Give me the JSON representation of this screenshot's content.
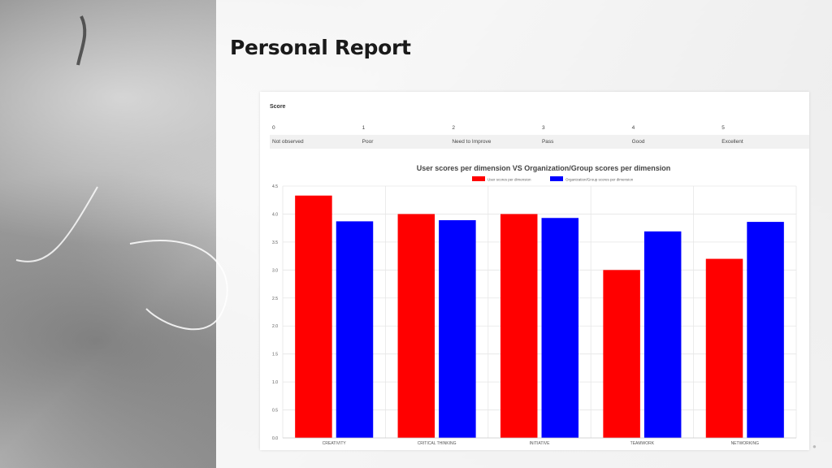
{
  "header": {
    "title": "Personal Report"
  },
  "score_scale": {
    "label": "Score",
    "levels": [
      {
        "value": "0",
        "label": "Not observed"
      },
      {
        "value": "1",
        "label": "Poor"
      },
      {
        "value": "2",
        "label": "Need to Improve"
      },
      {
        "value": "3",
        "label": "Pass"
      },
      {
        "value": "4",
        "label": "Good"
      },
      {
        "value": "5",
        "label": "Excellent"
      }
    ]
  },
  "chart_data": {
    "type": "bar",
    "title": "User scores per dimension VS Organization/Group scores per dimension",
    "categories": [
      "CREATIVITY",
      "CRITICAL THINKING",
      "INITIATIVE",
      "TEAMWORK",
      "NETWORKING"
    ],
    "series": [
      {
        "name": "User scores per dimension",
        "color": "#ff0000",
        "values": [
          4.33,
          4.0,
          4.0,
          3.0,
          3.2
        ]
      },
      {
        "name": "Organization/Group scores per dimension",
        "color": "#0000ff",
        "values": [
          3.87,
          3.89,
          3.93,
          3.69,
          3.86
        ]
      }
    ],
    "ylim": [
      0,
      4.5
    ],
    "yticks": [
      "0.0",
      "0.5",
      "1.0",
      "1.5",
      "2.0",
      "2.5",
      "3.0",
      "3.5",
      "4.0",
      "4.5"
    ],
    "legend_position": "top-center",
    "grid": true
  },
  "icons": {
    "corner": "lock-icon"
  }
}
